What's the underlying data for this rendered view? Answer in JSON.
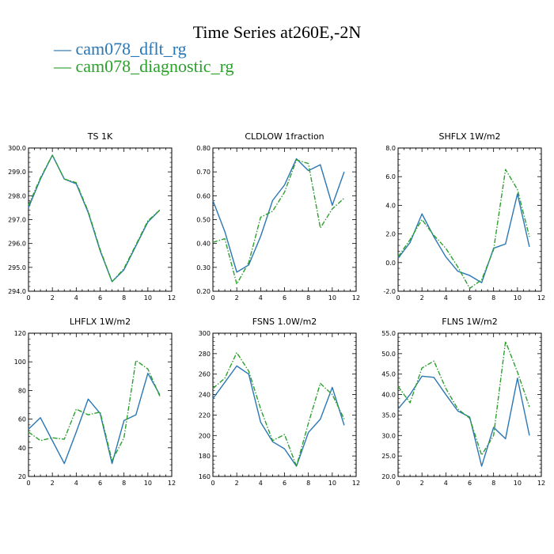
{
  "page": {
    "title": "Time Series at260E,-2N",
    "legend": [
      {
        "label": "cam078_dflt_rg",
        "color": "#2a77b4"
      },
      {
        "label": "cam078_diagnostic_rg",
        "color": "#2ca02c"
      }
    ]
  },
  "chart_data": [
    {
      "type": "line",
      "title": "TS   1K",
      "x": [
        0,
        1,
        2,
        3,
        4,
        5,
        6,
        7,
        8,
        9,
        10,
        11
      ],
      "xlim": [
        0,
        12
      ],
      "xticks": [
        0,
        2,
        4,
        6,
        8,
        10,
        12
      ],
      "ylim": [
        294.0,
        300.0
      ],
      "yticks": [
        "294.0",
        "295.0",
        "296.0",
        "297.0",
        "298.0",
        "299.0",
        "300.0"
      ],
      "series": [
        {
          "name": "cam078_dflt_rg",
          "color": "#2a77b4",
          "dashed": false,
          "values": [
            297.5,
            298.7,
            299.7,
            298.7,
            298.5,
            297.3,
            295.7,
            294.4,
            294.9,
            295.9,
            296.9,
            297.4
          ]
        },
        {
          "name": "cam078_diagnostic_rg",
          "color": "#2ca02c",
          "dashed": true,
          "values": [
            297.6,
            298.75,
            299.7,
            298.7,
            298.55,
            297.35,
            295.75,
            294.4,
            294.95,
            295.95,
            296.95,
            297.4
          ]
        }
      ]
    },
    {
      "type": "line",
      "title": "CLDLOW   1fraction",
      "x": [
        0,
        1,
        2,
        3,
        4,
        5,
        6,
        7,
        8,
        9,
        10,
        11
      ],
      "xlim": [
        0,
        12
      ],
      "xticks": [
        0,
        2,
        4,
        6,
        8,
        10,
        12
      ],
      "ylim": [
        0.2,
        0.8
      ],
      "yticks": [
        "0.20",
        "0.30",
        "0.40",
        "0.50",
        "0.60",
        "0.70",
        "0.80"
      ],
      "series": [
        {
          "name": "cam078_dflt_rg",
          "color": "#2a77b4",
          "dashed": false,
          "values": [
            0.58,
            0.45,
            0.28,
            0.31,
            0.43,
            0.58,
            0.645,
            0.755,
            0.705,
            0.73,
            0.56,
            0.7
          ]
        },
        {
          "name": "cam078_diagnostic_rg",
          "color": "#2ca02c",
          "dashed": true,
          "values": [
            0.405,
            0.42,
            0.23,
            0.32,
            0.51,
            0.535,
            0.615,
            0.75,
            0.735,
            0.465,
            0.545,
            0.59
          ]
        }
      ]
    },
    {
      "type": "line",
      "title": "SHFLX   1W/m2",
      "x": [
        0,
        1,
        2,
        3,
        4,
        5,
        6,
        7,
        8,
        9,
        10,
        11
      ],
      "xlim": [
        0,
        12
      ],
      "xticks": [
        0,
        2,
        4,
        6,
        8,
        10,
        12
      ],
      "ylim": [
        -2.0,
        8.0
      ],
      "yticks": [
        "-2.0",
        "0.0",
        "2.0",
        "4.0",
        "6.0",
        "8.0"
      ],
      "series": [
        {
          "name": "cam078_dflt_rg",
          "color": "#2a77b4",
          "dashed": false,
          "values": [
            0.3,
            1.4,
            3.4,
            1.8,
            0.4,
            -0.6,
            -0.9,
            -1.4,
            1.0,
            1.3,
            4.8,
            1.1
          ]
        },
        {
          "name": "cam078_diagnostic_rg",
          "color": "#2ca02c",
          "dashed": true,
          "values": [
            0.4,
            1.6,
            3.0,
            1.9,
            1.0,
            -0.3,
            -1.8,
            -1.2,
            0.9,
            6.5,
            5.1,
            1.8
          ]
        }
      ]
    },
    {
      "type": "line",
      "title": "LHFLX   1W/m2",
      "x": [
        0,
        1,
        2,
        3,
        4,
        5,
        6,
        7,
        8,
        9,
        10,
        11
      ],
      "xlim": [
        0,
        12
      ],
      "xticks": [
        0,
        2,
        4,
        6,
        8,
        10,
        12
      ],
      "ylim": [
        20,
        120
      ],
      "yticks": [
        "20",
        "40",
        "60",
        "80",
        "100",
        "120"
      ],
      "series": [
        {
          "name": "cam078_dflt_rg",
          "color": "#2a77b4",
          "dashed": false,
          "values": [
            53,
            61,
            45,
            29,
            51,
            74,
            64,
            29,
            59,
            63,
            92,
            77
          ]
        },
        {
          "name": "cam078_diagnostic_rg",
          "color": "#2ca02c",
          "dashed": true,
          "values": [
            51,
            45,
            47,
            46,
            67,
            63,
            65,
            31,
            47,
            101,
            95,
            76
          ]
        }
      ]
    },
    {
      "type": "line",
      "title": "FSNS   1.0W/m2",
      "x": [
        0,
        1,
        2,
        3,
        4,
        5,
        6,
        7,
        8,
        9,
        10,
        11
      ],
      "xlim": [
        0,
        12
      ],
      "xticks": [
        0,
        2,
        4,
        6,
        8,
        10,
        12
      ],
      "ylim": [
        160,
        300
      ],
      "yticks": [
        "160",
        "180",
        "200",
        "220",
        "240",
        "260",
        "280",
        "300"
      ],
      "series": [
        {
          "name": "cam078_dflt_rg",
          "color": "#2a77b4",
          "dashed": false,
          "values": [
            236,
            252,
            268,
            260,
            213,
            194,
            187,
            170,
            203,
            216,
            247,
            210
          ]
        },
        {
          "name": "cam078_diagnostic_rg",
          "color": "#2ca02c",
          "dashed": true,
          "values": [
            246,
            256,
            281,
            263,
            226,
            195,
            201,
            170,
            212,
            251,
            240,
            216
          ]
        }
      ]
    },
    {
      "type": "line",
      "title": "FLNS   1W/m2",
      "x": [
        0,
        1,
        2,
        3,
        4,
        5,
        6,
        7,
        8,
        9,
        10,
        11
      ],
      "xlim": [
        0,
        12
      ],
      "xticks": [
        0,
        2,
        4,
        6,
        8,
        10,
        12
      ],
      "ylim": [
        20.0,
        55.0
      ],
      "yticks": [
        "20.0",
        "25.0",
        "30.0",
        "35.0",
        "40.0",
        "45.0",
        "50.0",
        "55.0"
      ],
      "series": [
        {
          "name": "cam078_dflt_rg",
          "color": "#2a77b4",
          "dashed": false,
          "values": [
            36.5,
            40,
            44.5,
            44.2,
            40,
            36,
            34.5,
            22.5,
            32,
            29.2,
            44,
            30
          ]
        },
        {
          "name": "cam078_diagnostic_rg",
          "color": "#2ca02c",
          "dashed": true,
          "values": [
            42,
            38,
            46.5,
            48.2,
            41.5,
            36.5,
            34.2,
            25.2,
            30,
            53,
            45.5,
            37
          ]
        }
      ]
    }
  ]
}
